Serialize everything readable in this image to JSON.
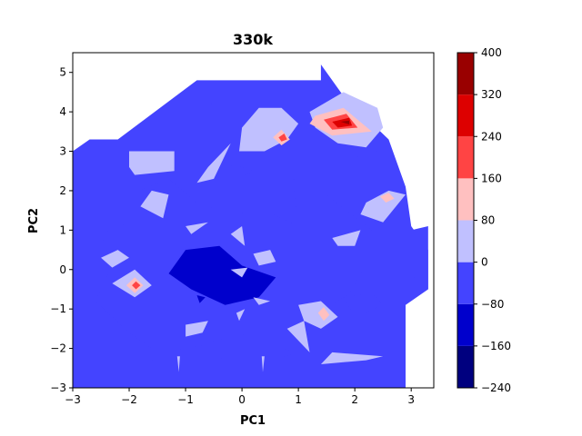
{
  "chart_data": {
    "type": "contour",
    "title": "330k",
    "xlabel": "PC1",
    "ylabel": "PC2",
    "xlim": [
      -3,
      3.4
    ],
    "ylim": [
      -3,
      5.5
    ],
    "xticks": [
      -3,
      -2,
      -1,
      0,
      1,
      2,
      3
    ],
    "yticks": [
      -3,
      -2,
      -1,
      0,
      1,
      2,
      3,
      4,
      5
    ],
    "colorbar": {
      "levels": [
        -240,
        -160,
        -80,
        0,
        80,
        160,
        240,
        320,
        400
      ],
      "colors": [
        "#00007f",
        "#0000cc",
        "#4444ff",
        "#c0c0ff",
        "#ffc0c0",
        "#ff4444",
        "#dd0000",
        "#990000"
      ],
      "cmap": "seismic"
    },
    "hull": [
      [
        -3,
        3
      ],
      [
        -2.7,
        3.3
      ],
      [
        -2.2,
        3.3
      ],
      [
        -0.8,
        4.8
      ],
      [
        1.4,
        4.8
      ],
      [
        1.4,
        5.2
      ],
      [
        1.8,
        4.4
      ],
      [
        2.6,
        3.3
      ],
      [
        2.9,
        2.1
      ],
      [
        3.0,
        1.1
      ],
      [
        3.3,
        0.5
      ],
      [
        3.3,
        -0.5
      ],
      [
        2.9,
        -0.9
      ],
      [
        2.9,
        -3
      ],
      [
        -3,
        -3
      ]
    ],
    "regions": [
      {
        "level": -80,
        "poly": [
          [
            -2.0,
            1.9
          ],
          [
            -1.3,
            2.3
          ],
          [
            -0.8,
            1.7
          ],
          [
            -0.2,
            1.4
          ],
          [
            0.4,
            1.5
          ],
          [
            1.0,
            1.1
          ],
          [
            0.9,
            2.3
          ],
          [
            1.4,
            2.0
          ],
          [
            2.3,
            1.0
          ],
          [
            2.2,
            0.1
          ],
          [
            1.9,
            -0.6
          ],
          [
            1.6,
            -0.9
          ],
          [
            0.8,
            -1.4
          ],
          [
            0.2,
            -1.6
          ],
          [
            -0.8,
            -1.9
          ],
          [
            -1.6,
            -2.0
          ],
          [
            -2.0,
            -1.6
          ],
          [
            -2.6,
            -0.8
          ],
          [
            -2.3,
            0.1
          ],
          [
            -2.5,
            0.9
          ],
          [
            -2.0,
            1.2
          ]
        ]
      },
      {
        "level": -80,
        "poly": [
          [
            -1.6,
            -2.3
          ],
          [
            -0.6,
            -2.2
          ],
          [
            0.3,
            -2.4
          ],
          [
            1.0,
            -2.1
          ],
          [
            0.4,
            -1.9
          ],
          [
            -0.6,
            -1.9
          ],
          [
            -1.4,
            -2.1
          ]
        ]
      },
      {
        "level": -80,
        "poly": [
          [
            0.5,
            3.1
          ],
          [
            0.9,
            3.05
          ],
          [
            0.8,
            2.9
          ],
          [
            0.55,
            2.95
          ]
        ]
      },
      {
        "level": -80,
        "poly": [
          [
            2.0,
            3.1
          ],
          [
            2.4,
            3.0
          ],
          [
            2.3,
            2.8
          ],
          [
            1.9,
            2.9
          ]
        ]
      },
      {
        "level": -80,
        "poly": [
          [
            -0.2,
            2.7
          ],
          [
            0.2,
            2.5
          ],
          [
            0.0,
            2.35
          ],
          [
            -0.15,
            2.45
          ]
        ]
      },
      {
        "level": -80,
        "poly": [
          [
            -0.55,
            4.2
          ],
          [
            -0.35,
            4.15
          ],
          [
            -0.4,
            4.0
          ]
        ]
      },
      {
        "level": -80,
        "poly": [
          [
            1.8,
            -0.7
          ],
          [
            2.3,
            -0.6
          ],
          [
            2.5,
            -0.9
          ],
          [
            2.0,
            -1.2
          ]
        ]
      },
      {
        "level": -160,
        "poly": [
          [
            -1.0,
            0.5
          ],
          [
            -0.4,
            0.6
          ],
          [
            0.0,
            0.1
          ],
          [
            0.6,
            -0.2
          ],
          [
            0.3,
            -0.7
          ],
          [
            -0.3,
            -0.9
          ],
          [
            -0.9,
            -0.5
          ],
          [
            -1.3,
            -0.1
          ]
        ]
      },
      {
        "level": -160,
        "poly": [
          [
            -0.75,
            -0.85
          ],
          [
            -0.65,
            -0.7
          ],
          [
            -0.8,
            -0.65
          ]
        ]
      },
      {
        "level": 0,
        "poly": [
          [
            -2.0,
            3.0
          ],
          [
            -1.2,
            3.0
          ],
          [
            -1.2,
            2.5
          ],
          [
            -1.9,
            2.4
          ],
          [
            -2.0,
            2.6
          ]
        ]
      },
      {
        "level": 0,
        "poly": [
          [
            -0.6,
            2.6
          ],
          [
            -0.4,
            2.9
          ],
          [
            -0.2,
            3.2
          ],
          [
            -0.5,
            2.3
          ],
          [
            -0.8,
            2.2
          ]
        ]
      },
      {
        "level": 0,
        "poly": [
          [
            -0.05,
            3.0
          ],
          [
            0.4,
            3.0
          ],
          [
            0.8,
            3.3
          ],
          [
            1.0,
            3.7
          ],
          [
            0.7,
            4.1
          ],
          [
            0.3,
            4.1
          ],
          [
            0.0,
            3.6
          ]
        ]
      },
      {
        "level": 0,
        "poly": [
          [
            1.2,
            4.0
          ],
          [
            1.8,
            4.5
          ],
          [
            2.4,
            4.1
          ],
          [
            2.5,
            3.6
          ],
          [
            2.2,
            3.1
          ],
          [
            1.7,
            3.2
          ],
          [
            1.3,
            3.6
          ]
        ]
      },
      {
        "level": 0,
        "poly": [
          [
            -1.8,
            1.6
          ],
          [
            -1.4,
            1.3
          ],
          [
            -1.3,
            1.9
          ],
          [
            -1.6,
            2.0
          ]
        ]
      },
      {
        "level": 0,
        "poly": [
          [
            -1.0,
            1.1
          ],
          [
            -0.6,
            1.2
          ],
          [
            -0.9,
            0.9
          ]
        ]
      },
      {
        "level": 0,
        "poly": [
          [
            -0.2,
            0.9
          ],
          [
            0.05,
            0.6
          ],
          [
            0.0,
            1.1
          ]
        ]
      },
      {
        "level": 0,
        "poly": [
          [
            2.2,
            1.7
          ],
          [
            2.6,
            2.0
          ],
          [
            2.9,
            1.9
          ],
          [
            2.5,
            1.2
          ],
          [
            2.1,
            1.4
          ]
        ]
      },
      {
        "level": 0,
        "poly": [
          [
            1.6,
            0.8
          ],
          [
            2.1,
            1.0
          ],
          [
            2.0,
            0.6
          ],
          [
            1.7,
            0.6
          ]
        ]
      },
      {
        "level": -80,
        "poly": [
          [
            3.0,
            1.0
          ],
          [
            3.3,
            1.1
          ],
          [
            3.3,
            -0.5
          ],
          [
            3.05,
            -0.2
          ]
        ]
      },
      {
        "level": 0,
        "poly": [
          [
            -2.5,
            0.3
          ],
          [
            -2.2,
            0.5
          ],
          [
            -2.0,
            0.3
          ],
          [
            -2.3,
            0.05
          ]
        ]
      },
      {
        "level": 0,
        "poly": [
          [
            0.2,
            0.4
          ],
          [
            0.5,
            0.5
          ],
          [
            0.6,
            0.2
          ],
          [
            0.3,
            0.1
          ]
        ]
      },
      {
        "level": 0,
        "poly": [
          [
            -0.2,
            0.0
          ],
          [
            0.1,
            0.05
          ],
          [
            0.0,
            -0.2
          ]
        ]
      },
      {
        "level": 0,
        "poly": [
          [
            -2.3,
            -0.35
          ],
          [
            -1.9,
            0.0
          ],
          [
            -1.6,
            -0.4
          ],
          [
            -1.9,
            -0.7
          ]
        ]
      },
      {
        "level": 0,
        "poly": [
          [
            0.2,
            -0.7
          ],
          [
            0.5,
            -0.8
          ],
          [
            0.3,
            -0.9
          ]
        ]
      },
      {
        "level": 0,
        "poly": [
          [
            1.0,
            -0.9
          ],
          [
            1.4,
            -0.8
          ],
          [
            1.7,
            -1.2
          ],
          [
            1.4,
            -1.5
          ],
          [
            1.1,
            -1.3
          ]
        ]
      },
      {
        "level": 0,
        "poly": [
          [
            0.8,
            -1.5
          ],
          [
            1.1,
            -1.3
          ],
          [
            1.2,
            -2.1
          ]
        ]
      },
      {
        "level": 0,
        "poly": [
          [
            -1.0,
            -1.4
          ],
          [
            -0.6,
            -1.3
          ],
          [
            -0.7,
            -1.6
          ],
          [
            -1.0,
            -1.7
          ]
        ]
      },
      {
        "level": 0,
        "poly": [
          [
            -0.1,
            -1.1
          ],
          [
            0.05,
            -1.0
          ],
          [
            -0.05,
            -1.3
          ]
        ]
      },
      {
        "level": 0,
        "poly": [
          [
            1.4,
            -2.4
          ],
          [
            2.2,
            -2.3
          ],
          [
            2.5,
            -2.2
          ],
          [
            1.6,
            -2.1
          ]
        ]
      },
      {
        "level": 0,
        "poly": [
          [
            -1.15,
            -2.2
          ],
          [
            -1.1,
            -2.2
          ],
          [
            -1.12,
            -2.6
          ]
        ]
      },
      {
        "level": 0,
        "poly": [
          [
            0.35,
            -2.2
          ],
          [
            0.4,
            -2.2
          ],
          [
            0.37,
            -2.6
          ]
        ]
      },
      {
        "level": 80,
        "poly": [
          [
            1.3,
            3.9
          ],
          [
            1.8,
            4.1
          ],
          [
            2.3,
            3.5
          ],
          [
            1.6,
            3.4
          ],
          [
            1.2,
            3.7
          ]
        ]
      },
      {
        "level": 80,
        "poly": [
          [
            0.55,
            3.35
          ],
          [
            0.7,
            3.55
          ],
          [
            0.85,
            3.3
          ],
          [
            0.7,
            3.15
          ]
        ]
      },
      {
        "level": 80,
        "poly": [
          [
            2.45,
            1.85
          ],
          [
            2.6,
            1.95
          ],
          [
            2.7,
            1.8
          ],
          [
            2.55,
            1.7
          ]
        ]
      },
      {
        "level": 80,
        "poly": [
          [
            -2.05,
            -0.4
          ],
          [
            -1.9,
            -0.2
          ],
          [
            -1.75,
            -0.4
          ],
          [
            -1.9,
            -0.6
          ]
        ]
      },
      {
        "level": 80,
        "poly": [
          [
            1.35,
            -1.1
          ],
          [
            1.45,
            -0.95
          ],
          [
            1.55,
            -1.15
          ],
          [
            1.45,
            -1.3
          ]
        ]
      },
      {
        "level": 160,
        "poly": [
          [
            1.45,
            3.8
          ],
          [
            1.85,
            3.95
          ],
          [
            2.05,
            3.6
          ],
          [
            1.6,
            3.55
          ]
        ]
      },
      {
        "level": 160,
        "poly": [
          [
            0.65,
            3.35
          ],
          [
            0.75,
            3.45
          ],
          [
            0.8,
            3.3
          ],
          [
            0.7,
            3.25
          ]
        ]
      },
      {
        "level": 160,
        "poly": [
          [
            -1.95,
            -0.4
          ],
          [
            -1.88,
            -0.3
          ],
          [
            -1.8,
            -0.4
          ],
          [
            -1.88,
            -0.5
          ]
        ]
      },
      {
        "level": 240,
        "poly": [
          [
            1.6,
            3.75
          ],
          [
            1.9,
            3.85
          ],
          [
            1.95,
            3.65
          ],
          [
            1.7,
            3.6
          ]
        ]
      },
      {
        "level": 320,
        "poly": [
          [
            1.75,
            3.75
          ],
          [
            1.9,
            3.78
          ],
          [
            1.9,
            3.68
          ]
        ]
      }
    ]
  }
}
